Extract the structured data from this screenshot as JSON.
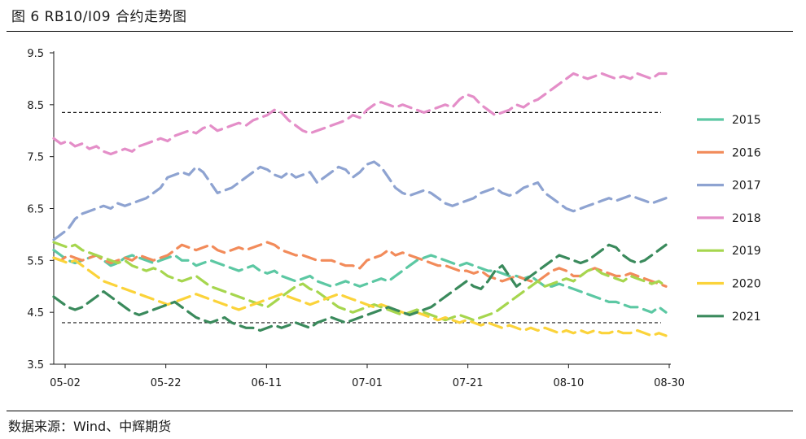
{
  "header": {
    "title": "图 6 RB10/I09 合约走势图"
  },
  "footer": {
    "source": "数据来源：Wind、中辉期货"
  },
  "chart_data": {
    "type": "line",
    "title": "",
    "xlabel": "",
    "ylabel": "",
    "x_ticks": [
      "05-02",
      "05-22",
      "06-11",
      "07-01",
      "07-21",
      "08-10",
      "08-30"
    ],
    "y_ticks": [
      "9.5",
      "8.5",
      "7.5",
      "6.5",
      "5.5",
      "4.5",
      "3.5"
    ],
    "ylim": [
      3.5,
      9.5
    ],
    "grid": false,
    "legend_position": "right",
    "reference_lines": [
      8.35,
      4.3
    ],
    "series": [
      {
        "name": "2015",
        "color": "#5cc8a3",
        "values": [
          5.7,
          5.6,
          5.5,
          5.45,
          5.5,
          5.55,
          5.6,
          5.5,
          5.4,
          5.45,
          5.55,
          5.6,
          5.55,
          5.5,
          5.45,
          5.5,
          5.55,
          5.6,
          5.5,
          5.5,
          5.4,
          5.45,
          5.5,
          5.45,
          5.4,
          5.35,
          5.3,
          5.35,
          5.4,
          5.3,
          5.25,
          5.3,
          5.2,
          5.15,
          5.1,
          5.15,
          5.2,
          5.1,
          5.05,
          5.0,
          5.05,
          5.1,
          5.05,
          5.0,
          5.05,
          5.1,
          5.15,
          5.1,
          5.2,
          5.3,
          5.4,
          5.5,
          5.55,
          5.6,
          5.55,
          5.5,
          5.45,
          5.4,
          5.45,
          5.4,
          5.35,
          5.3,
          5.3,
          5.25,
          5.2,
          5.2,
          5.15,
          5.2,
          5.1,
          5.0,
          5.0,
          5.05,
          5.0,
          4.95,
          4.9,
          4.85,
          4.8,
          4.75,
          4.7,
          4.7,
          4.65,
          4.6,
          4.6,
          4.55,
          4.5,
          4.6,
          4.5
        ]
      },
      {
        "name": "2016",
        "color": "#f28b5a",
        "values": [
          5.55,
          5.5,
          5.6,
          5.55,
          5.5,
          5.55,
          5.6,
          5.5,
          5.45,
          5.5,
          5.55,
          5.5,
          5.6,
          5.55,
          5.5,
          5.55,
          5.6,
          5.7,
          5.8,
          5.75,
          5.7,
          5.75,
          5.8,
          5.7,
          5.65,
          5.7,
          5.75,
          5.7,
          5.75,
          5.8,
          5.85,
          5.8,
          5.7,
          5.65,
          5.6,
          5.6,
          5.55,
          5.5,
          5.5,
          5.5,
          5.45,
          5.4,
          5.4,
          5.35,
          5.5,
          5.55,
          5.6,
          5.7,
          5.6,
          5.65,
          5.6,
          5.55,
          5.5,
          5.45,
          5.4,
          5.4,
          5.35,
          5.3,
          5.3,
          5.25,
          5.3,
          5.2,
          5.15,
          5.1,
          5.15,
          5.2,
          5.15,
          5.1,
          5.1,
          5.2,
          5.3,
          5.35,
          5.3,
          5.2,
          5.2,
          5.3,
          5.35,
          5.3,
          5.25,
          5.2,
          5.2,
          5.25,
          5.2,
          5.15,
          5.1,
          5.05,
          5.0
        ]
      },
      {
        "name": "2017",
        "color": "#8ea3d1",
        "values": [
          5.9,
          6.0,
          6.1,
          6.3,
          6.4,
          6.45,
          6.5,
          6.55,
          6.5,
          6.6,
          6.55,
          6.6,
          6.65,
          6.7,
          6.8,
          6.9,
          7.1,
          7.15,
          7.2,
          7.15,
          7.3,
          7.2,
          7.0,
          6.8,
          6.85,
          6.9,
          7.0,
          7.1,
          7.2,
          7.3,
          7.25,
          7.15,
          7.1,
          7.2,
          7.1,
          7.15,
          7.2,
          7.0,
          7.1,
          7.2,
          7.3,
          7.25,
          7.1,
          7.2,
          7.35,
          7.4,
          7.3,
          7.1,
          6.9,
          6.8,
          6.75,
          6.8,
          6.85,
          6.8,
          6.7,
          6.6,
          6.55,
          6.6,
          6.65,
          6.7,
          6.8,
          6.85,
          6.9,
          6.8,
          6.75,
          6.8,
          6.9,
          6.95,
          7.0,
          6.8,
          6.7,
          6.6,
          6.5,
          6.45,
          6.5,
          6.55,
          6.6,
          6.65,
          6.7,
          6.65,
          6.7,
          6.75,
          6.7,
          6.65,
          6.6,
          6.65,
          6.7
        ]
      },
      {
        "name": "2018",
        "color": "#e48ec8",
        "values": [
          7.85,
          7.75,
          7.8,
          7.7,
          7.75,
          7.65,
          7.7,
          7.6,
          7.55,
          7.6,
          7.65,
          7.6,
          7.7,
          7.75,
          7.8,
          7.85,
          7.8,
          7.9,
          7.95,
          8.0,
          7.95,
          8.05,
          8.1,
          8.0,
          8.05,
          8.1,
          8.15,
          8.1,
          8.2,
          8.25,
          8.3,
          8.4,
          8.35,
          8.2,
          8.1,
          8.0,
          7.95,
          8.0,
          8.05,
          8.1,
          8.15,
          8.2,
          8.3,
          8.25,
          8.4,
          8.5,
          8.55,
          8.5,
          8.45,
          8.5,
          8.45,
          8.4,
          8.35,
          8.4,
          8.45,
          8.5,
          8.45,
          8.6,
          8.7,
          8.65,
          8.5,
          8.4,
          8.3,
          8.35,
          8.4,
          8.5,
          8.45,
          8.55,
          8.6,
          8.7,
          8.8,
          8.9,
          9.0,
          9.1,
          9.05,
          9.0,
          9.05,
          9.1,
          9.05,
          9.0,
          9.05,
          9.0,
          9.1,
          9.05,
          9.0,
          9.1,
          9.1
        ]
      },
      {
        "name": "2019",
        "color": "#a6d64e",
        "values": [
          5.85,
          5.8,
          5.75,
          5.8,
          5.7,
          5.65,
          5.6,
          5.55,
          5.5,
          5.45,
          5.5,
          5.4,
          5.35,
          5.3,
          5.35,
          5.3,
          5.2,
          5.15,
          5.1,
          5.15,
          5.2,
          5.1,
          5.0,
          4.95,
          4.9,
          4.85,
          4.8,
          4.75,
          4.7,
          4.65,
          4.6,
          4.7,
          4.8,
          4.9,
          5.0,
          5.05,
          4.95,
          4.9,
          4.8,
          4.7,
          4.6,
          4.55,
          4.5,
          4.55,
          4.6,
          4.65,
          4.6,
          4.55,
          4.5,
          4.45,
          4.5,
          4.55,
          4.5,
          4.45,
          4.4,
          4.35,
          4.4,
          4.45,
          4.4,
          4.35,
          4.4,
          4.45,
          4.5,
          4.6,
          4.7,
          4.8,
          4.9,
          5.0,
          5.1,
          5.0,
          5.05,
          5.1,
          5.15,
          5.1,
          5.2,
          5.3,
          5.35,
          5.25,
          5.2,
          5.15,
          5.1,
          5.2,
          5.15,
          5.1,
          5.05,
          5.1,
          5.0
        ]
      },
      {
        "name": "2020",
        "color": "#fbd33a",
        "values": [
          5.55,
          5.5,
          5.45,
          5.5,
          5.4,
          5.3,
          5.2,
          5.1,
          5.05,
          5.0,
          4.95,
          4.9,
          4.85,
          4.8,
          4.75,
          4.7,
          4.65,
          4.7,
          4.75,
          4.8,
          4.85,
          4.8,
          4.75,
          4.7,
          4.65,
          4.6,
          4.55,
          4.6,
          4.65,
          4.7,
          4.75,
          4.8,
          4.85,
          4.8,
          4.75,
          4.7,
          4.65,
          4.7,
          4.75,
          4.8,
          4.85,
          4.8,
          4.75,
          4.7,
          4.65,
          4.6,
          4.65,
          4.6,
          4.55,
          4.5,
          4.45,
          4.5,
          4.45,
          4.4,
          4.35,
          4.4,
          4.35,
          4.3,
          4.35,
          4.3,
          4.25,
          4.3,
          4.25,
          4.2,
          4.25,
          4.2,
          4.15,
          4.2,
          4.15,
          4.2,
          4.15,
          4.1,
          4.15,
          4.1,
          4.15,
          4.1,
          4.15,
          4.1,
          4.1,
          4.15,
          4.1,
          4.1,
          4.15,
          4.1,
          4.05,
          4.1,
          4.05
        ]
      },
      {
        "name": "2021",
        "color": "#3a8a5c",
        "values": [
          4.8,
          4.7,
          4.6,
          4.55,
          4.6,
          4.7,
          4.8,
          4.9,
          4.8,
          4.7,
          4.6,
          4.5,
          4.45,
          4.5,
          4.55,
          4.6,
          4.65,
          4.7,
          4.6,
          4.5,
          4.4,
          4.35,
          4.3,
          4.35,
          4.4,
          4.3,
          4.25,
          4.2,
          4.2,
          4.15,
          4.2,
          4.25,
          4.2,
          4.25,
          4.3,
          4.25,
          4.2,
          4.3,
          4.35,
          4.4,
          4.35,
          4.3,
          4.35,
          4.4,
          4.45,
          4.5,
          4.55,
          4.6,
          4.55,
          4.5,
          4.45,
          4.5,
          4.55,
          4.6,
          4.7,
          4.8,
          4.9,
          5.0,
          5.1,
          5.0,
          4.95,
          5.1,
          5.3,
          5.4,
          5.2,
          5.0,
          5.1,
          5.2,
          5.3,
          5.4,
          5.5,
          5.6,
          5.55,
          5.5,
          5.45,
          5.5,
          5.6,
          5.7,
          5.8,
          5.75,
          5.6,
          5.5,
          5.45,
          5.5,
          5.6,
          5.7,
          5.8
        ]
      }
    ]
  }
}
